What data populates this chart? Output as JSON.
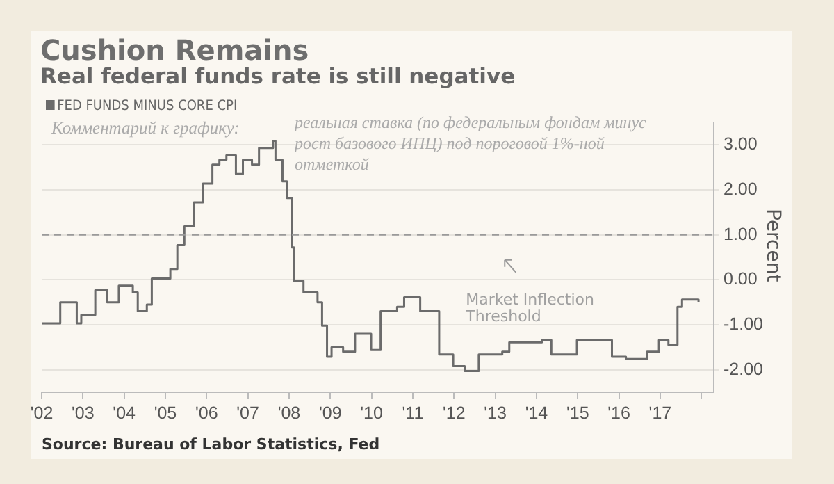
{
  "chart_data": {
    "type": "step",
    "title": "Cushion Remains",
    "subtitle": "Real federal funds rate is still negative",
    "ylabel": "Percent",
    "annotations": [
      "Комментарий к графику:",
      "реальная ставка (по федеральным фондам минус рост базового ИПЦ) под пороговой 1%-ной отметкой",
      "Source: Bureau of Labor Statistics, Fed"
    ],
    "x": [
      2002.0,
      2002.45,
      2002.85,
      2002.96,
      2003.3,
      2003.59,
      2003.87,
      2004.21,
      2004.33,
      2004.55,
      2004.67,
      2004.9,
      2005.12,
      2005.29,
      2005.46,
      2005.69,
      2005.91,
      2006.14,
      2006.31,
      2006.48,
      2006.71,
      2006.88,
      2007.1,
      2007.27,
      2007.61,
      2007.67,
      2007.84,
      2007.95,
      2008.07,
      2008.12,
      2008.35,
      2008.69,
      2008.8,
      2008.92,
      2009.03,
      2009.31,
      2009.6,
      2009.99,
      2010.22,
      2010.62,
      2010.79,
      2011.18,
      2011.64,
      2011.98,
      2012.26,
      2012.6,
      2013.17,
      2013.34,
      2014.13,
      2014.36,
      2014.98,
      2015.83,
      2016.17,
      2016.68,
      2016.97,
      2017.2,
      2017.42,
      2017.53,
      2017.87,
      2017.93
    ],
    "series": [
      {
        "name": "FED FUNDS MINUS CORE CPI",
        "color": "#6b6b6b",
        "values": [
          -0.97,
          -0.5,
          -0.97,
          -0.78,
          -0.23,
          -0.5,
          -0.13,
          -0.28,
          -0.7,
          -0.55,
          0.03,
          0.03,
          0.24,
          0.77,
          1.19,
          1.72,
          2.14,
          2.56,
          2.67,
          2.77,
          2.35,
          2.67,
          2.56,
          2.93,
          3.09,
          2.67,
          2.19,
          1.82,
          0.72,
          -0.02,
          -0.28,
          -0.5,
          -1.02,
          -1.71,
          -1.5,
          -1.6,
          -1.2,
          -1.56,
          -0.7,
          -0.6,
          -0.39,
          -0.7,
          -1.66,
          -1.92,
          -2.03,
          -1.66,
          -1.6,
          -1.39,
          -1.34,
          -1.66,
          -1.34,
          -1.71,
          -1.76,
          -1.6,
          -1.34,
          -1.45,
          -0.6,
          -0.44,
          -0.44,
          -0.5
        ]
      }
    ],
    "xlim": [
      2002,
      2018.3
    ],
    "xticks": [
      {
        "value": 2002,
        "label": "'02"
      },
      {
        "value": 2003,
        "label": "'03"
      },
      {
        "value": 2004,
        "label": "'04"
      },
      {
        "value": 2005,
        "label": "'05"
      },
      {
        "value": 2006,
        "label": "'06"
      },
      {
        "value": 2007,
        "label": "'07"
      },
      {
        "value": 2008,
        "label": "'08"
      },
      {
        "value": 2009,
        "label": "'09"
      },
      {
        "value": 2010,
        "label": "'10"
      },
      {
        "value": 2011,
        "label": "'11"
      },
      {
        "value": 2012,
        "label": "'12"
      },
      {
        "value": 2013,
        "label": "'13"
      },
      {
        "value": 2014,
        "label": "'14"
      },
      {
        "value": 2015,
        "label": "'15"
      },
      {
        "value": 2016,
        "label": "'16"
      },
      {
        "value": 2017,
        "label": "'17"
      },
      {
        "value": 2018,
        "label": null
      }
    ],
    "ylim": [
      -2.5,
      3.5
    ],
    "yticks": [
      {
        "value": -2,
        "label": "-2.00"
      },
      {
        "value": -1,
        "label": "-1.00"
      },
      {
        "value": 0,
        "label": "0.00"
      },
      {
        "value": 1,
        "label": "1.00"
      },
      {
        "value": 2,
        "label": "2.00"
      },
      {
        "value": 3,
        "label": "3.00"
      }
    ],
    "ref_lines": [
      {
        "axis": "y",
        "value": 1,
        "label": "Market Inflection Threshold",
        "color": "#9a9a9a",
        "line_style": "dashed"
      }
    ],
    "grid": "y",
    "legend": "top left",
    "marker": "none",
    "line_style": "solid"
  }
}
